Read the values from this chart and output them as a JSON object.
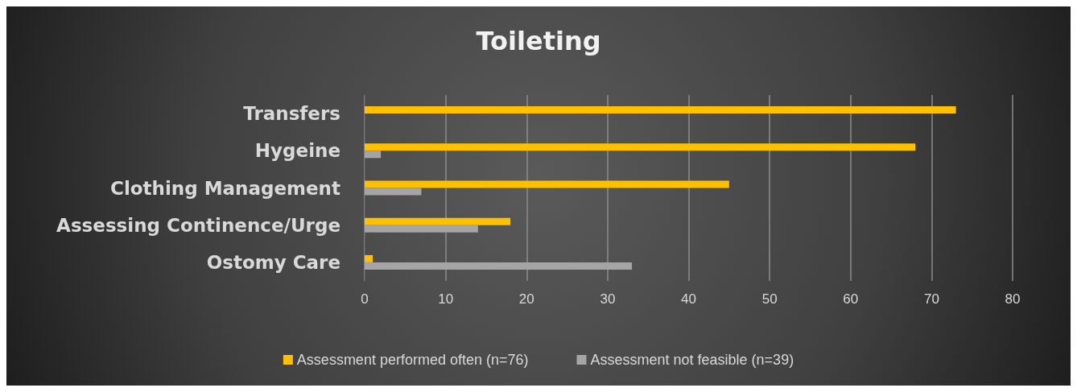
{
  "chart_data": {
    "type": "bar",
    "orientation": "horizontal",
    "title": "Toileting",
    "categories": [
      "Transfers",
      "Hygeine",
      "Clothing Management",
      "Assessing Continence/Urge",
      "Ostomy Care"
    ],
    "series": [
      {
        "name": "Assessment performed often (n=76)",
        "color": "#ffc000",
        "values": [
          73,
          68,
          45,
          18,
          1
        ]
      },
      {
        "name": "Assessment not feasible (n=39)",
        "color": "#a5a5a5",
        "values": [
          0,
          2,
          7,
          14,
          33
        ]
      }
    ],
    "xlim": [
      0,
      80
    ],
    "xticks": [
      0,
      10,
      20,
      30,
      40,
      50,
      60,
      70,
      80
    ],
    "grid": "x",
    "legend": "bottom"
  }
}
